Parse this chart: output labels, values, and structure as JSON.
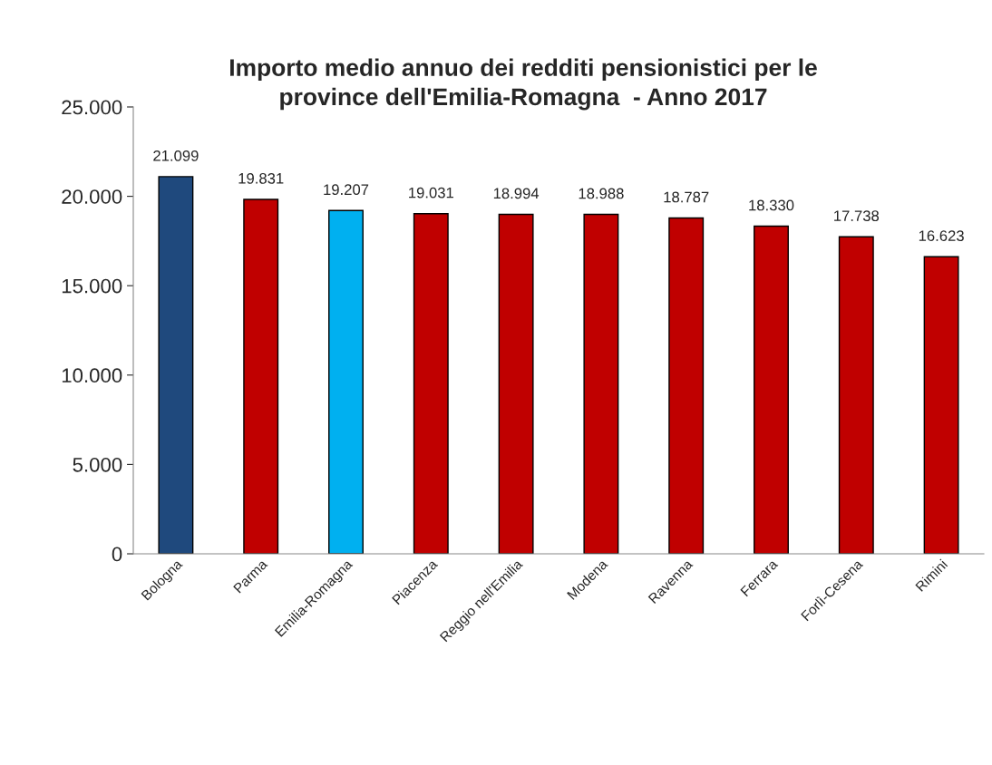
{
  "chart_data": {
    "type": "bar",
    "title": "Importo medio annuo dei redditi pensionistici per le\nprovince dell'Emilia-Romagna  - Anno 2017",
    "categories": [
      "Bologna",
      "Parma",
      "Emilia-Romagna",
      "Piacenza",
      "Reggio nell'Emilia",
      "Modena",
      "Ravenna",
      "Ferrara",
      "Forlì-Cesena",
      "Rimini"
    ],
    "values": [
      21099,
      19831,
      19207,
      19031,
      18994,
      18988,
      18787,
      18330,
      17738,
      16623
    ],
    "value_labels": [
      "21.099",
      "19.831",
      "19.207",
      "19.031",
      "18.994",
      "18.988",
      "18.787",
      "18.330",
      "17.738",
      "16.623"
    ],
    "colors": [
      "#1f497d",
      "#c00000",
      "#00b0f0",
      "#c00000",
      "#c00000",
      "#c00000",
      "#c00000",
      "#c00000",
      "#c00000",
      "#c00000"
    ],
    "ylim": [
      0,
      25000
    ],
    "yticks": [
      {
        "value": 0,
        "label": "0"
      },
      {
        "value": 5000,
        "label": "5.000"
      },
      {
        "value": 10000,
        "label": "10.000"
      },
      {
        "value": 15000,
        "label": "15.000"
      },
      {
        "value": 20000,
        "label": "20.000"
      },
      {
        "value": 25000,
        "label": "25.000"
      }
    ],
    "grid": false,
    "legend": false
  }
}
